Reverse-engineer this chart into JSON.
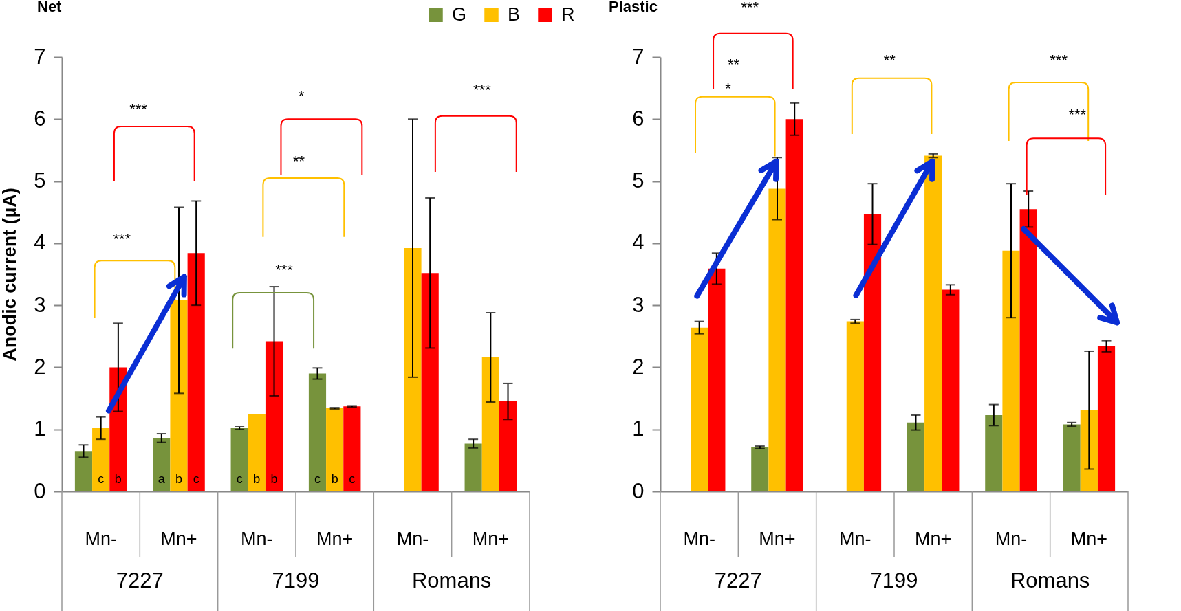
{
  "chart_data": [
    {
      "type": "bar",
      "title": "Net",
      "ylabel": "Anodic current (µA)",
      "categories": [
        "Mn-",
        "Mn+",
        "Mn-",
        "Mn+",
        "Mn-",
        "Mn+"
      ],
      "series": [
        {
          "name": "G",
          "color": "#77933c",
          "values": [
            0.65,
            0.86,
            1.02,
            1.9,
            null,
            0.77
          ],
          "errors": [
            0.1,
            0.07,
            0.02,
            0.09,
            null,
            0.07
          ],
          "value_labels": [
            null,
            "a",
            "c",
            "c",
            null,
            null
          ]
        },
        {
          "name": "B",
          "color": "#ffc000",
          "values": [
            1.02,
            3.08,
            1.25,
            1.34,
            3.92,
            2.16
          ],
          "errors": [
            0.18,
            1.5,
            null,
            0.01,
            2.08,
            0.72
          ],
          "value_labels": [
            "c",
            "b",
            "b",
            "b",
            null,
            null
          ]
        },
        {
          "name": "R",
          "color": "#ff0000",
          "values": [
            2.0,
            3.84,
            2.42,
            1.37,
            3.52,
            1.45
          ],
          "errors": [
            0.71,
            0.84,
            0.88,
            0.01,
            1.21,
            0.29
          ],
          "value_labels": [
            "b",
            "c",
            "b",
            "c",
            null,
            null
          ]
        }
      ],
      "ylim": [
        0,
        7
      ],
      "yticks": [
        0,
        1,
        2,
        3,
        4,
        5,
        6,
        7
      ],
      "legend": "top right",
      "annotations": [
        "***",
        "***",
        "***",
        "**",
        "*",
        "***",
        "7227",
        "7199",
        "Romans"
      ]
    },
    {
      "type": "bar",
      "title": "Plastic",
      "categories": [
        "Mn-",
        "Mn+",
        "Mn-",
        "Mn+",
        "Mn-",
        "Mn+"
      ],
      "series": [
        {
          "color": "#77933c",
          "values": [
            null,
            0.71,
            null,
            1.11,
            1.23,
            1.08
          ],
          "errors": [
            null,
            0.02,
            null,
            0.12,
            0.17,
            0.03
          ]
        },
        {
          "color": "#ffc000",
          "values": [
            2.64,
            4.88,
            2.74,
            5.41,
            3.88,
            1.31
          ],
          "errors": [
            0.1,
            0.5,
            0.03,
            0.03,
            1.08,
            0.95
          ]
        },
        {
          "color": "#ff0000",
          "values": [
            3.59,
            6.0,
            4.47,
            3.25,
            4.55,
            2.34
          ],
          "errors": [
            0.25,
            0.26,
            0.49,
            0.08,
            0.29,
            0.09
          ]
        }
      ],
      "ylim": [
        0,
        7
      ],
      "yticks": [
        0,
        1,
        2,
        3,
        4,
        5,
        6,
        7
      ],
      "annotations": [
        "***",
        "**",
        "*",
        "**",
        "***",
        "***",
        "7227",
        "7199",
        "Romans"
      ]
    }
  ]
}
